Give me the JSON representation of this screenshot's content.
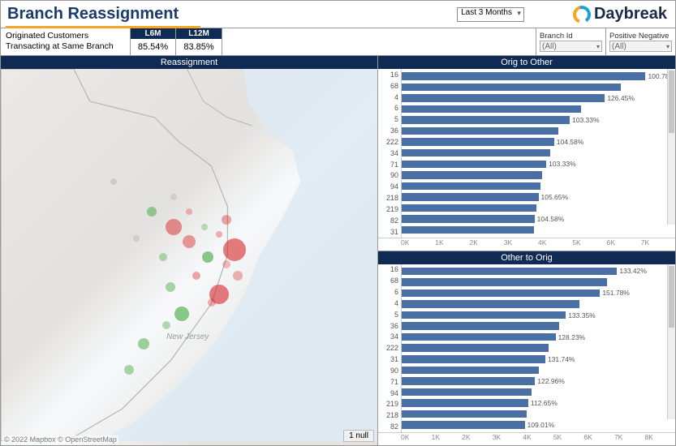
{
  "header": {
    "title": "Branch Reassignment",
    "title_color": "#1a3a6e",
    "underline_color": "#f5a623",
    "period_selector": {
      "selected": "Last 3 Months"
    },
    "brand_name": "Daybreak",
    "brand_colors": {
      "orange": "#f5a623",
      "blue": "#1fa0d8"
    }
  },
  "metrics": {
    "label_line1": "Originated Customers",
    "label_line2": "Transacting at Same Branch",
    "columns": [
      {
        "head": "L6M",
        "value": "85.54%"
      },
      {
        "head": "L12M",
        "value": "83.85%"
      }
    ]
  },
  "filters": {
    "branch_id": {
      "label": "Branch Id",
      "value": "(All)"
    },
    "pos_neg": {
      "label": "Positive Negative",
      "value": "(All)"
    }
  },
  "map": {
    "title": "Reassignment",
    "state_label": "New Jersey",
    "null_badge": "1 null",
    "attribution": "© 2022 Mapbox © OpenStreetMap",
    "bubbles": [
      {
        "x": 62,
        "y": 48,
        "r": 14,
        "color": "rgba(214,39,40,0.60)"
      },
      {
        "x": 58,
        "y": 60,
        "r": 12,
        "color": "rgba(214,39,40,0.60)"
      },
      {
        "x": 46,
        "y": 42,
        "r": 10,
        "color": "rgba(214,39,40,0.50)"
      },
      {
        "x": 50,
        "y": 46,
        "r": 8,
        "color": "rgba(214,39,40,0.45)"
      },
      {
        "x": 55,
        "y": 50,
        "r": 7,
        "color": "rgba(44,160,44,0.55)"
      },
      {
        "x": 48,
        "y": 65,
        "r": 9,
        "color": "rgba(44,160,44,0.55)"
      },
      {
        "x": 40,
        "y": 38,
        "r": 6,
        "color": "rgba(44,160,44,0.45)"
      },
      {
        "x": 60,
        "y": 40,
        "r": 6,
        "color": "rgba(214,39,40,0.40)"
      },
      {
        "x": 52,
        "y": 55,
        "r": 5,
        "color": "rgba(214,39,40,0.40)"
      },
      {
        "x": 45,
        "y": 58,
        "r": 6,
        "color": "rgba(44,160,44,0.40)"
      },
      {
        "x": 56,
        "y": 62,
        "r": 5,
        "color": "rgba(214,39,40,0.35)"
      },
      {
        "x": 63,
        "y": 55,
        "r": 6,
        "color": "rgba(214,39,40,0.35)"
      },
      {
        "x": 43,
        "y": 50,
        "r": 5,
        "color": "rgba(44,160,44,0.35)"
      },
      {
        "x": 38,
        "y": 73,
        "r": 7,
        "color": "rgba(44,160,44,0.45)"
      },
      {
        "x": 34,
        "y": 80,
        "r": 6,
        "color": "rgba(44,160,44,0.40)"
      },
      {
        "x": 30,
        "y": 30,
        "r": 4,
        "color": "rgba(160,160,160,0.35)"
      },
      {
        "x": 36,
        "y": 45,
        "r": 4,
        "color": "rgba(160,160,160,0.30)"
      },
      {
        "x": 58,
        "y": 44,
        "r": 4,
        "color": "rgba(214,39,40,0.35)"
      },
      {
        "x": 50,
        "y": 38,
        "r": 4,
        "color": "rgba(214,39,40,0.30)"
      },
      {
        "x": 44,
        "y": 68,
        "r": 5,
        "color": "rgba(44,160,44,0.35)"
      },
      {
        "x": 54,
        "y": 42,
        "r": 4,
        "color": "rgba(44,160,44,0.30)"
      },
      {
        "x": 60,
        "y": 52,
        "r": 5,
        "color": "rgba(214,39,40,0.30)"
      },
      {
        "x": 46,
        "y": 34,
        "r": 4,
        "color": "rgba(160,160,160,0.30)"
      }
    ]
  },
  "charts": {
    "bar_color": "#4a6fa5",
    "orig_to_other": {
      "title": "Orig to Other",
      "xmax": 7000,
      "xticks": [
        "0K",
        "1K",
        "2K",
        "3K",
        "4K",
        "5K",
        "6K",
        "7K"
      ],
      "bars": [
        {
          "id": "16",
          "value": 6400,
          "label": "100.78%"
        },
        {
          "id": "68",
          "value": 5600,
          "label": ""
        },
        {
          "id": "4",
          "value": 5200,
          "label": "126.45%"
        },
        {
          "id": "6",
          "value": 4600,
          "label": ""
        },
        {
          "id": "5",
          "value": 4300,
          "label": "103.33%"
        },
        {
          "id": "36",
          "value": 4000,
          "label": ""
        },
        {
          "id": "222",
          "value": 3900,
          "label": "104.58%"
        },
        {
          "id": "34",
          "value": 3800,
          "label": ""
        },
        {
          "id": "71",
          "value": 3700,
          "label": "103.33%"
        },
        {
          "id": "90",
          "value": 3600,
          "label": ""
        },
        {
          "id": "94",
          "value": 3550,
          "label": ""
        },
        {
          "id": "218",
          "value": 3500,
          "label": "105.65%"
        },
        {
          "id": "219",
          "value": 3450,
          "label": ""
        },
        {
          "id": "82",
          "value": 3400,
          "label": "104.58%"
        },
        {
          "id": "31",
          "value": 3380,
          "label": ""
        }
      ]
    },
    "other_to_orig": {
      "title": "Other to Orig",
      "xmax": 8000,
      "xticks": [
        "0K",
        "1K",
        "2K",
        "3K",
        "4K",
        "5K",
        "6K",
        "7K",
        "8K"
      ],
      "bars": [
        {
          "id": "16",
          "value": 6300,
          "label": "133.42%"
        },
        {
          "id": "68",
          "value": 6000,
          "label": ""
        },
        {
          "id": "6",
          "value": 5800,
          "label": "151.78%"
        },
        {
          "id": "4",
          "value": 5200,
          "label": ""
        },
        {
          "id": "5",
          "value": 4800,
          "label": "133.35%"
        },
        {
          "id": "36",
          "value": 4600,
          "label": ""
        },
        {
          "id": "34",
          "value": 4500,
          "label": "128.23%"
        },
        {
          "id": "222",
          "value": 4300,
          "label": ""
        },
        {
          "id": "31",
          "value": 4200,
          "label": "131.74%"
        },
        {
          "id": "90",
          "value": 4000,
          "label": ""
        },
        {
          "id": "71",
          "value": 3900,
          "label": "122.96%"
        },
        {
          "id": "94",
          "value": 3800,
          "label": ""
        },
        {
          "id": "219",
          "value": 3700,
          "label": "112.65%"
        },
        {
          "id": "218",
          "value": 3650,
          "label": ""
        },
        {
          "id": "82",
          "value": 3600,
          "label": "109.01%"
        }
      ]
    }
  }
}
